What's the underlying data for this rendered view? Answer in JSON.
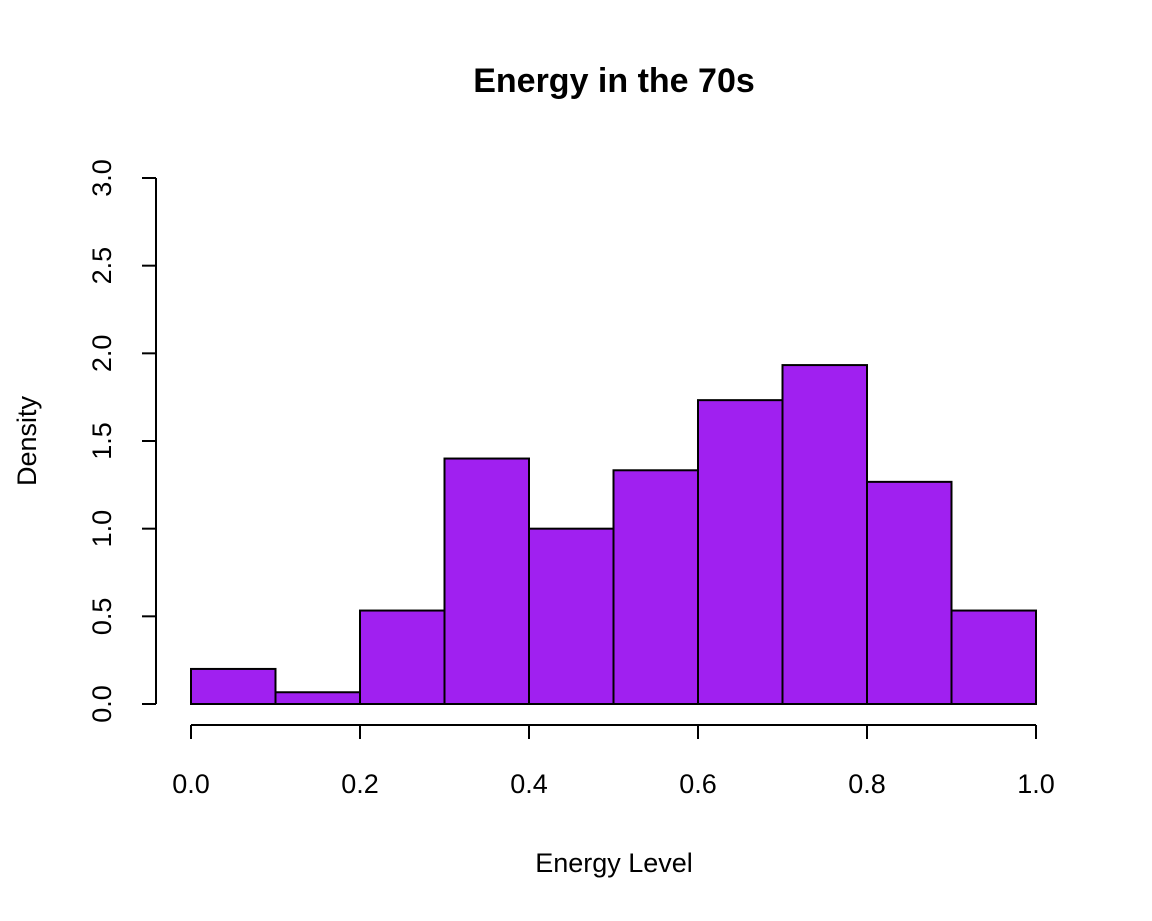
{
  "chart_data": {
    "type": "bar",
    "histogram": true,
    "title": "Energy in the 70s",
    "xlabel": "Energy Level",
    "ylabel": "Density",
    "bin_edges": [
      0.0,
      0.1,
      0.2,
      0.3,
      0.4,
      0.5,
      0.6,
      0.7,
      0.8,
      0.9,
      1.0
    ],
    "values": [
      0.2,
      0.067,
      0.533,
      1.4,
      1.0,
      1.333,
      1.733,
      1.933,
      1.267,
      0.533
    ],
    "xlim": [
      0.0,
      1.0
    ],
    "ylim": [
      0.0,
      3.0
    ],
    "x_ticks": [
      "0.0",
      "0.2",
      "0.4",
      "0.6",
      "0.8",
      "1.0"
    ],
    "y_ticks": [
      "0.0",
      "0.5",
      "1.0",
      "1.5",
      "2.0",
      "2.5",
      "3.0"
    ],
    "bar_color": "#a020f0",
    "grid": false
  }
}
